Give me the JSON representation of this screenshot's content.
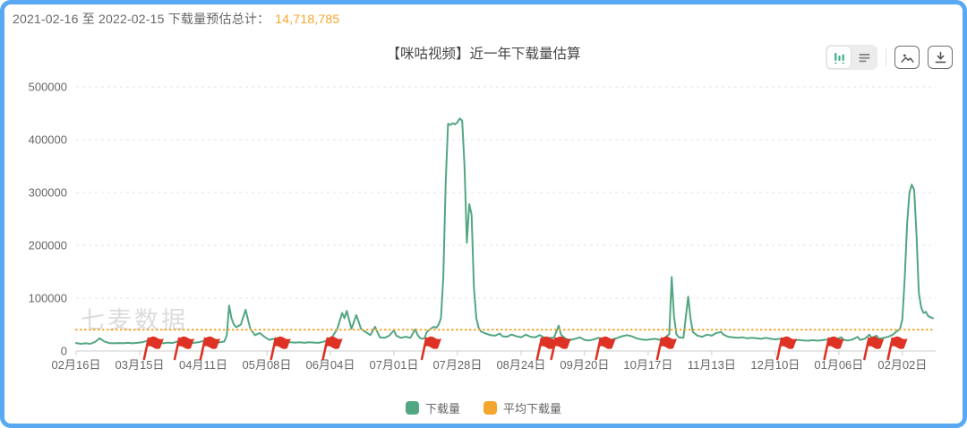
{
  "header": {
    "date_range_label": "2021-02-16 至 2022-02-15 下载量预估总计：",
    "total_value": "14,718,785"
  },
  "chart": {
    "title": "【咪咕视频】近一年下载量估算",
    "watermark": "七麦数据"
  },
  "toolbar": {
    "icons": [
      "bar-chart-view-icon",
      "data-view-icon",
      "save-image-icon",
      "download-icon"
    ],
    "active_view": "bar-chart-view"
  },
  "legend": {
    "items": [
      {
        "label": "下载量",
        "color": "#52a681"
      },
      {
        "label": "平均下载量",
        "color": "#f5a62c"
      }
    ]
  },
  "colors": {
    "frame_blue": "#58a9f1",
    "series_green": "#52a681",
    "average_orange": "#f5a62c",
    "flag_red": "#dd3224",
    "total_orange": "#f7a62b",
    "grid_gray": "#e3e3e3",
    "axis_gray": "#cccccc",
    "label_gray": "#666666",
    "watermark_gray": "#dcdcdc"
  },
  "chart_data": {
    "type": "line",
    "title": "【咪咕视频】近一年下载量估算",
    "xlabel": "",
    "ylabel": "",
    "ylim": [
      0,
      500000
    ],
    "y_ticks": [
      0,
      100000,
      200000,
      300000,
      400000,
      500000
    ],
    "x_ticks": [
      "02月16日",
      "03月15日",
      "04月11日",
      "05月08日",
      "06月04日",
      "07月01日",
      "07月28日",
      "08月24日",
      "09月20日",
      "10月17日",
      "11月13日",
      "12月10日",
      "01月06日",
      "02月02日"
    ],
    "x_tick_interval_days": 27,
    "total_days": 365,
    "grid": "dashed-horizontal",
    "legend_position": "bottom",
    "average_value": 40325,
    "flag_marker_days": [
      30,
      43,
      54,
      84,
      106,
      148,
      197,
      203,
      222,
      248,
      299,
      319,
      336,
      346
    ],
    "series": [
      {
        "name": "下载量",
        "color": "#52a681",
        "points": [
          [
            0,
            15000
          ],
          [
            2,
            13500
          ],
          [
            4,
            14500
          ],
          [
            6,
            13500
          ],
          [
            8,
            17000
          ],
          [
            10,
            24000
          ],
          [
            12,
            18000
          ],
          [
            14,
            15000
          ],
          [
            16,
            14500
          ],
          [
            18,
            15000
          ],
          [
            20,
            14500
          ],
          [
            22,
            15500
          ],
          [
            24,
            14500
          ],
          [
            26,
            15500
          ],
          [
            28,
            16500
          ],
          [
            30,
            19000
          ],
          [
            31,
            14500
          ],
          [
            33,
            14500
          ],
          [
            35,
            15500
          ],
          [
            37,
            14500
          ],
          [
            39,
            16000
          ],
          [
            41,
            15000
          ],
          [
            43,
            18000
          ],
          [
            44,
            14500
          ],
          [
            46,
            15000
          ],
          [
            48,
            15000
          ],
          [
            50,
            15500
          ],
          [
            52,
            16500
          ],
          [
            54,
            19000
          ],
          [
            55,
            15500
          ],
          [
            57,
            16000
          ],
          [
            59,
            15000
          ],
          [
            61,
            16500
          ],
          [
            63,
            18000
          ],
          [
            64,
            30000
          ],
          [
            65,
            86000
          ],
          [
            66,
            62000
          ],
          [
            67,
            50000
          ],
          [
            68,
            45000
          ],
          [
            70,
            50000
          ],
          [
            72,
            78000
          ],
          [
            73,
            60000
          ],
          [
            74,
            42000
          ],
          [
            76,
            30000
          ],
          [
            78,
            34000
          ],
          [
            80,
            27000
          ],
          [
            82,
            21000
          ],
          [
            84,
            23000
          ],
          [
            85,
            19000
          ],
          [
            87,
            17500
          ],
          [
            89,
            17000
          ],
          [
            91,
            16500
          ],
          [
            93,
            16000
          ],
          [
            95,
            16500
          ],
          [
            97,
            15500
          ],
          [
            99,
            16500
          ],
          [
            101,
            16000
          ],
          [
            103,
            15500
          ],
          [
            105,
            17500
          ],
          [
            106,
            19000
          ],
          [
            107,
            20000
          ],
          [
            109,
            28000
          ],
          [
            111,
            42000
          ],
          [
            113,
            72000
          ],
          [
            114,
            62000
          ],
          [
            115,
            76000
          ],
          [
            116,
            58000
          ],
          [
            117,
            42000
          ],
          [
            119,
            68000
          ],
          [
            120,
            56000
          ],
          [
            121,
            42000
          ],
          [
            123,
            36000
          ],
          [
            125,
            30000
          ],
          [
            127,
            46000
          ],
          [
            128,
            36000
          ],
          [
            129,
            26000
          ],
          [
            131,
            25000
          ],
          [
            133,
            29000
          ],
          [
            135,
            39000
          ],
          [
            136,
            29000
          ],
          [
            138,
            25000
          ],
          [
            140,
            27000
          ],
          [
            142,
            25000
          ],
          [
            144,
            41000
          ],
          [
            145,
            31000
          ],
          [
            146,
            25000
          ],
          [
            147,
            23000
          ],
          [
            148,
            24000
          ],
          [
            149,
            36000
          ],
          [
            150,
            40000
          ],
          [
            151,
            43000
          ],
          [
            152,
            46000
          ],
          [
            153,
            44000
          ],
          [
            154,
            50000
          ],
          [
            155,
            62000
          ],
          [
            156,
            140000
          ],
          [
            157,
            320000
          ],
          [
            158,
            430000
          ],
          [
            159,
            428000
          ],
          [
            160,
            431000
          ],
          [
            161,
            429000
          ],
          [
            162,
            433000
          ],
          [
            163,
            440000
          ],
          [
            164,
            436000
          ],
          [
            165,
            350000
          ],
          [
            166,
            205000
          ],
          [
            167,
            278000
          ],
          [
            168,
            258000
          ],
          [
            169,
            120000
          ],
          [
            170,
            62000
          ],
          [
            171,
            44000
          ],
          [
            172,
            37000
          ],
          [
            174,
            33000
          ],
          [
            176,
            30000
          ],
          [
            178,
            29000
          ],
          [
            180,
            33000
          ],
          [
            181,
            28000
          ],
          [
            183,
            27000
          ],
          [
            185,
            31000
          ],
          [
            187,
            28000
          ],
          [
            189,
            26000
          ],
          [
            191,
            31000
          ],
          [
            193,
            27000
          ],
          [
            195,
            26000
          ],
          [
            197,
            30000
          ],
          [
            199,
            25000
          ],
          [
            201,
            24500
          ],
          [
            203,
            25500
          ],
          [
            205,
            48000
          ],
          [
            206,
            31000
          ],
          [
            208,
            23000
          ],
          [
            210,
            21000
          ],
          [
            212,
            23000
          ],
          [
            214,
            26000
          ],
          [
            216,
            21000
          ],
          [
            218,
            20000
          ],
          [
            220,
            22000
          ],
          [
            222,
            25000
          ],
          [
            224,
            21000
          ],
          [
            226,
            20000
          ],
          [
            228,
            22000
          ],
          [
            230,
            25000
          ],
          [
            232,
            28000
          ],
          [
            234,
            30000
          ],
          [
            236,
            28000
          ],
          [
            238,
            24000
          ],
          [
            240,
            22000
          ],
          [
            242,
            21000
          ],
          [
            244,
            22000
          ],
          [
            246,
            23000
          ],
          [
            248,
            21000
          ],
          [
            250,
            25000
          ],
          [
            252,
            32000
          ],
          [
            253,
            140000
          ],
          [
            254,
            65000
          ],
          [
            255,
            32000
          ],
          [
            256,
            26000
          ],
          [
            258,
            25000
          ],
          [
            260,
            103000
          ],
          [
            261,
            62000
          ],
          [
            262,
            36000
          ],
          [
            264,
            29000
          ],
          [
            266,
            27000
          ],
          [
            268,
            31000
          ],
          [
            270,
            29000
          ],
          [
            272,
            34000
          ],
          [
            274,
            36000
          ],
          [
            275,
            31000
          ],
          [
            277,
            27000
          ],
          [
            279,
            26000
          ],
          [
            281,
            25000
          ],
          [
            283,
            26000
          ],
          [
            285,
            24000
          ],
          [
            287,
            25000
          ],
          [
            289,
            24000
          ],
          [
            291,
            23000
          ],
          [
            293,
            25000
          ],
          [
            295,
            23000
          ],
          [
            297,
            22000
          ],
          [
            299,
            23000
          ],
          [
            301,
            21000
          ],
          [
            303,
            22000
          ],
          [
            305,
            20000
          ],
          [
            307,
            21000
          ],
          [
            309,
            20000
          ],
          [
            311,
            19500
          ],
          [
            313,
            20500
          ],
          [
            315,
            19500
          ],
          [
            317,
            20500
          ],
          [
            319,
            21500
          ],
          [
            321,
            20500
          ],
          [
            323,
            22500
          ],
          [
            325,
            26000
          ],
          [
            326,
            21000
          ],
          [
            328,
            20000
          ],
          [
            330,
            22000
          ],
          [
            332,
            27000
          ],
          [
            333,
            21000
          ],
          [
            335,
            23000
          ],
          [
            337,
            31000
          ],
          [
            338,
            25000
          ],
          [
            340,
            29000
          ],
          [
            341,
            23000
          ],
          [
            343,
            25000
          ],
          [
            345,
            27000
          ],
          [
            347,
            31000
          ],
          [
            348,
            35000
          ],
          [
            350,
            42000
          ],
          [
            351,
            60000
          ],
          [
            352,
            140000
          ],
          [
            353,
            240000
          ],
          [
            354,
            300000
          ],
          [
            355,
            315000
          ],
          [
            356,
            305000
          ],
          [
            357,
            220000
          ],
          [
            358,
            110000
          ],
          [
            359,
            82000
          ],
          [
            360,
            72000
          ],
          [
            361,
            74000
          ],
          [
            362,
            66000
          ],
          [
            364,
            62000
          ]
        ]
      },
      {
        "name": "平均下载量",
        "color": "#f5a62c",
        "type": "average-line",
        "value": 40325
      }
    ]
  }
}
